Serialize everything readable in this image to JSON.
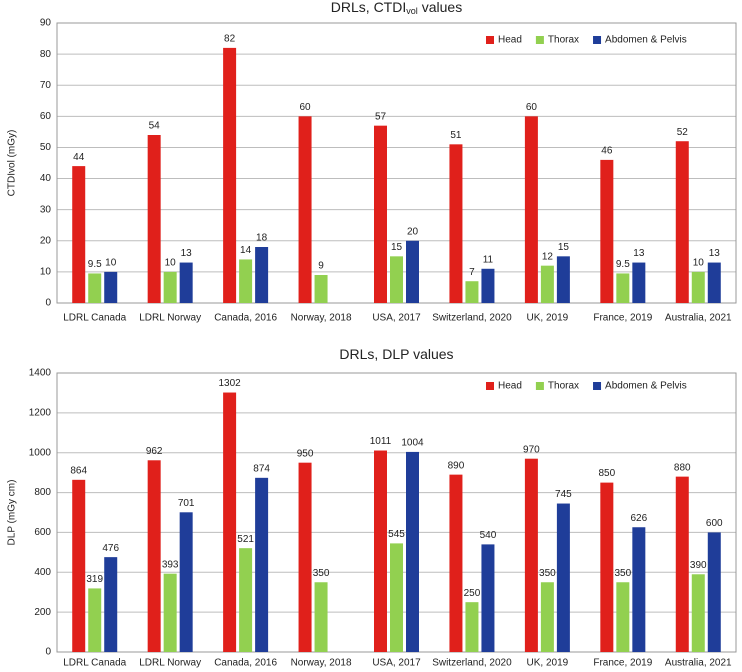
{
  "chart_data": [
    {
      "type": "bar",
      "title": [
        "DRLs, CTDI",
        "vol",
        "values"
      ],
      "ylabel": "CTDIvol (mGy)",
      "categories": [
        "LDRL Canada",
        "LDRL Norway",
        "Canada, 2016",
        "Norway, 2018",
        "USA, 2017",
        "Switzerland, 2020",
        "UK, 2019",
        "France, 2019",
        "Australia, 2021"
      ],
      "series": [
        {
          "name": "Head",
          "color": "#e0201b",
          "values": [
            44,
            54,
            82,
            60,
            57,
            51,
            60,
            46,
            52
          ]
        },
        {
          "name": "Thorax",
          "color": "#92d050",
          "values": [
            9.5,
            10,
            14,
            9,
            15,
            7,
            12,
            9.5,
            10
          ]
        },
        {
          "name": "Abdomen & Pelvis",
          "color": "#1f3d99",
          "values": [
            10,
            13,
            18,
            null,
            20,
            11,
            15,
            13,
            13
          ]
        }
      ],
      "ylim": [
        0,
        90
      ],
      "yticks": [
        0,
        10,
        20,
        30,
        40,
        50,
        60,
        70,
        80,
        90
      ],
      "grid": true,
      "legend": "top-right"
    },
    {
      "type": "bar",
      "title": [
        "DRLs, DLP values"
      ],
      "ylabel": "DLP (mGy cm)",
      "categories": [
        "LDRL Canada",
        "LDRL Norway",
        "Canada, 2016",
        "Norway, 2018",
        "USA, 2017",
        "Switzerland, 2020",
        "UK, 2019",
        "France, 2019",
        "Australia, 2021"
      ],
      "series": [
        {
          "name": "Head",
          "color": "#e0201b",
          "values": [
            864,
            962,
            1302,
            950,
            1011,
            890,
            970,
            850,
            880
          ]
        },
        {
          "name": "Thorax",
          "color": "#92d050",
          "values": [
            319,
            393,
            521,
            350,
            545,
            250,
            350,
            350,
            390
          ]
        },
        {
          "name": "Abdomen & Pelvis",
          "color": "#1f3d99",
          "values": [
            476,
            701,
            874,
            null,
            1004,
            540,
            745,
            626,
            600
          ]
        }
      ],
      "ylim": [
        0,
        1400
      ],
      "yticks": [
        0,
        200,
        400,
        600,
        800,
        1000,
        1200,
        1400
      ],
      "grid": true,
      "legend": "top-right"
    }
  ]
}
